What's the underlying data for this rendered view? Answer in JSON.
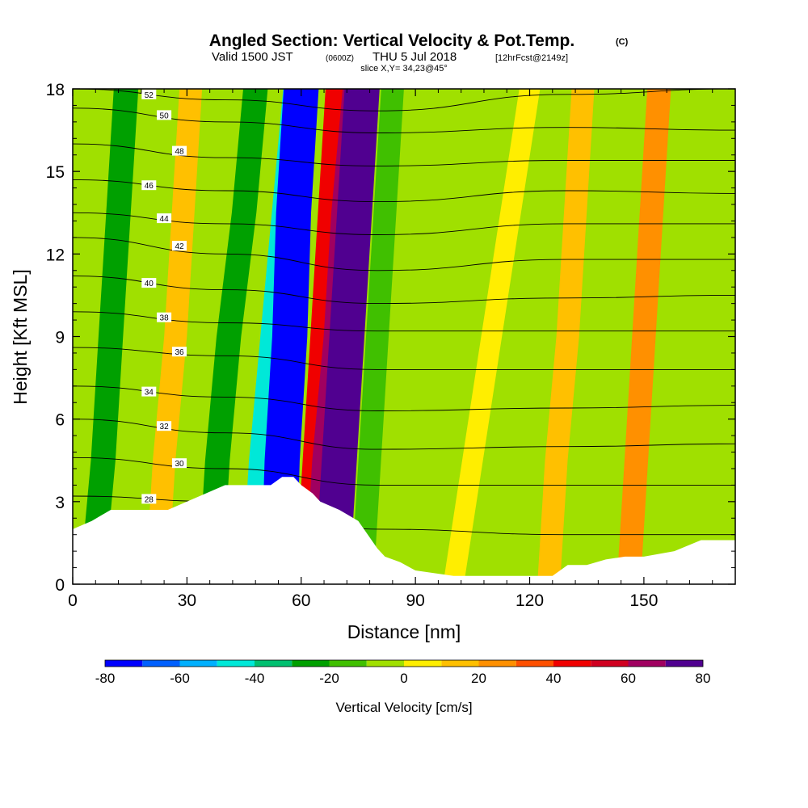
{
  "chart_data": {
    "type": "heatmap",
    "title": {
      "main": "Angled Section: Vertical Velocity & Pot.Temp.",
      "copyright": "(C)",
      "valid_a": "Valid 1500 JST",
      "valid_b": "(0600Z)",
      "valid_c": "THU 5 Jul 2018",
      "valid_d": "[12hrFcst@2149z]",
      "slice": "slice X,Y= 34,23@45°"
    },
    "xlabel": "Distance [nm]",
    "ylabel": "Height [Kft MSL]",
    "xlim": [
      0,
      174
    ],
    "ylim": [
      0,
      18
    ],
    "x_ticks": [
      0,
      30,
      60,
      90,
      120,
      150
    ],
    "y_ticks": [
      0,
      3,
      6,
      9,
      12,
      15,
      18
    ],
    "x_tick_labels": [
      "0",
      "30",
      "60",
      "90",
      "120",
      "150"
    ],
    "y_tick_labels": [
      "0",
      "3",
      "6",
      "9",
      "12",
      "15",
      "18"
    ],
    "colorbar": {
      "title": "Vertical Velocity [cm/s]",
      "levels": [
        -80,
        -70,
        -60,
        -50,
        -40,
        -30,
        -20,
        -10,
        0,
        10,
        20,
        30,
        40,
        50,
        60,
        70,
        80
      ],
      "tick_values": [
        -80,
        -60,
        -40,
        -20,
        0,
        20,
        40,
        60,
        80
      ],
      "tick_labels": [
        "-80",
        "-60",
        "-40",
        "-20",
        "0",
        "20",
        "40",
        "60",
        "80"
      ],
      "colors": [
        "#0000ff",
        "#0060ff",
        "#00b0ff",
        "#00e8d8",
        "#00c070",
        "#00a000",
        "#40c000",
        "#a0e000",
        "#ffee00",
        "#ffc000",
        "#ff9000",
        "#ff5000",
        "#f00000",
        "#d00020",
        "#a00060",
        "#500090"
      ]
    },
    "terrain": [
      [
        0,
        2.0
      ],
      [
        5,
        2.3
      ],
      [
        10,
        2.7
      ],
      [
        20,
        2.7
      ],
      [
        25,
        2.7
      ],
      [
        30,
        3.0
      ],
      [
        35,
        3.3
      ],
      [
        40,
        3.6
      ],
      [
        45,
        3.6
      ],
      [
        50,
        3.6
      ],
      [
        52,
        3.6
      ],
      [
        55,
        3.9
      ],
      [
        58,
        3.9
      ],
      [
        60,
        3.6
      ],
      [
        63,
        3.3
      ],
      [
        65,
        3.0
      ],
      [
        70,
        2.7
      ],
      [
        75,
        2.3
      ],
      [
        80,
        1.3
      ],
      [
        82,
        1.0
      ],
      [
        86,
        0.8
      ],
      [
        90,
        0.5
      ],
      [
        95,
        0.4
      ],
      [
        100,
        0.3
      ],
      [
        110,
        0.3
      ],
      [
        120,
        0.3
      ],
      [
        126,
        0.3
      ],
      [
        130,
        0.7
      ],
      [
        135,
        0.7
      ],
      [
        140,
        0.9
      ],
      [
        145,
        1.0
      ],
      [
        150,
        1.0
      ],
      [
        158,
        1.2
      ],
      [
        165,
        1.6
      ],
      [
        170,
        1.6
      ],
      [
        174,
        1.6
      ]
    ],
    "velocity_bands": [
      {
        "x": [
          5,
          8,
          10,
          12,
          14
        ],
        "value": -25
      },
      {
        "x": [
          22,
          24,
          27,
          29,
          31
        ],
        "value": 15
      },
      {
        "x": [
          36,
          38,
          41,
          45,
          48
        ],
        "value": -25
      },
      {
        "x": [
          48,
          50,
          53,
          56,
          59
        ],
        "value": -45
      },
      {
        "x": [
          54,
          55,
          57,
          58,
          60
        ],
        "value": -80
      },
      {
        "x": [
          62,
          64,
          66,
          68,
          70
        ],
        "value": 40
      },
      {
        "x": [
          65,
          67,
          70,
          72,
          75
        ],
        "value": 60
      },
      {
        "x": [
          68,
          70,
          72,
          74,
          76
        ],
        "value": 80
      },
      {
        "x": [
          76,
          78,
          80,
          82,
          84
        ],
        "value": -15
      },
      {
        "x": [
          100,
          105,
          110,
          115,
          120
        ],
        "value": 5
      },
      {
        "x": [
          125,
          127,
          130,
          132,
          134
        ],
        "value": 15
      },
      {
        "x": [
          146,
          148,
          150,
          152,
          154
        ],
        "value": 20
      }
    ],
    "theta_contours": [
      {
        "level": 52,
        "label": "52",
        "heights": [
          18.0,
          17.6,
          17.2,
          17.8,
          18.0
        ]
      },
      {
        "level": 50,
        "label": "50",
        "heights": [
          17.3,
          16.8,
          16.4,
          16.6,
          16.5
        ]
      },
      {
        "level": 48,
        "label": "48",
        "heights": [
          16.0,
          15.5,
          15.2,
          15.4,
          15.4
        ]
      },
      {
        "level": 46,
        "label": "46",
        "heights": [
          14.7,
          14.3,
          13.9,
          14.3,
          14.2
        ]
      },
      {
        "level": 44,
        "label": "44",
        "heights": [
          13.5,
          13.1,
          12.7,
          13.1,
          13.1
        ]
      },
      {
        "level": 42,
        "label": "42",
        "heights": [
          12.6,
          12.0,
          11.4,
          11.8,
          11.8
        ]
      },
      {
        "level": 40,
        "label": "40",
        "heights": [
          11.2,
          10.7,
          10.2,
          10.4,
          10.5
        ]
      },
      {
        "level": 38,
        "label": "38",
        "heights": [
          9.9,
          9.5,
          9.2,
          9.2,
          9.2
        ]
      },
      {
        "level": 36,
        "label": "36",
        "heights": [
          8.6,
          8.3,
          7.8,
          7.8,
          7.8
        ]
      },
      {
        "level": 34,
        "label": "34",
        "heights": [
          7.2,
          6.8,
          6.3,
          6.4,
          6.5
        ]
      },
      {
        "level": 32,
        "label": "32",
        "heights": [
          6.0,
          5.5,
          4.9,
          5.0,
          5.1
        ]
      },
      {
        "level": 30,
        "label": "30",
        "heights": [
          4.6,
          4.2,
          3.6,
          3.6,
          3.6
        ]
      },
      {
        "level": 28,
        "label": "28",
        "heights": [
          3.2,
          3.0,
          2.0,
          1.8,
          1.8
        ]
      }
    ],
    "theta_contour_x": [
      0,
      40,
      80,
      130,
      174
    ]
  }
}
